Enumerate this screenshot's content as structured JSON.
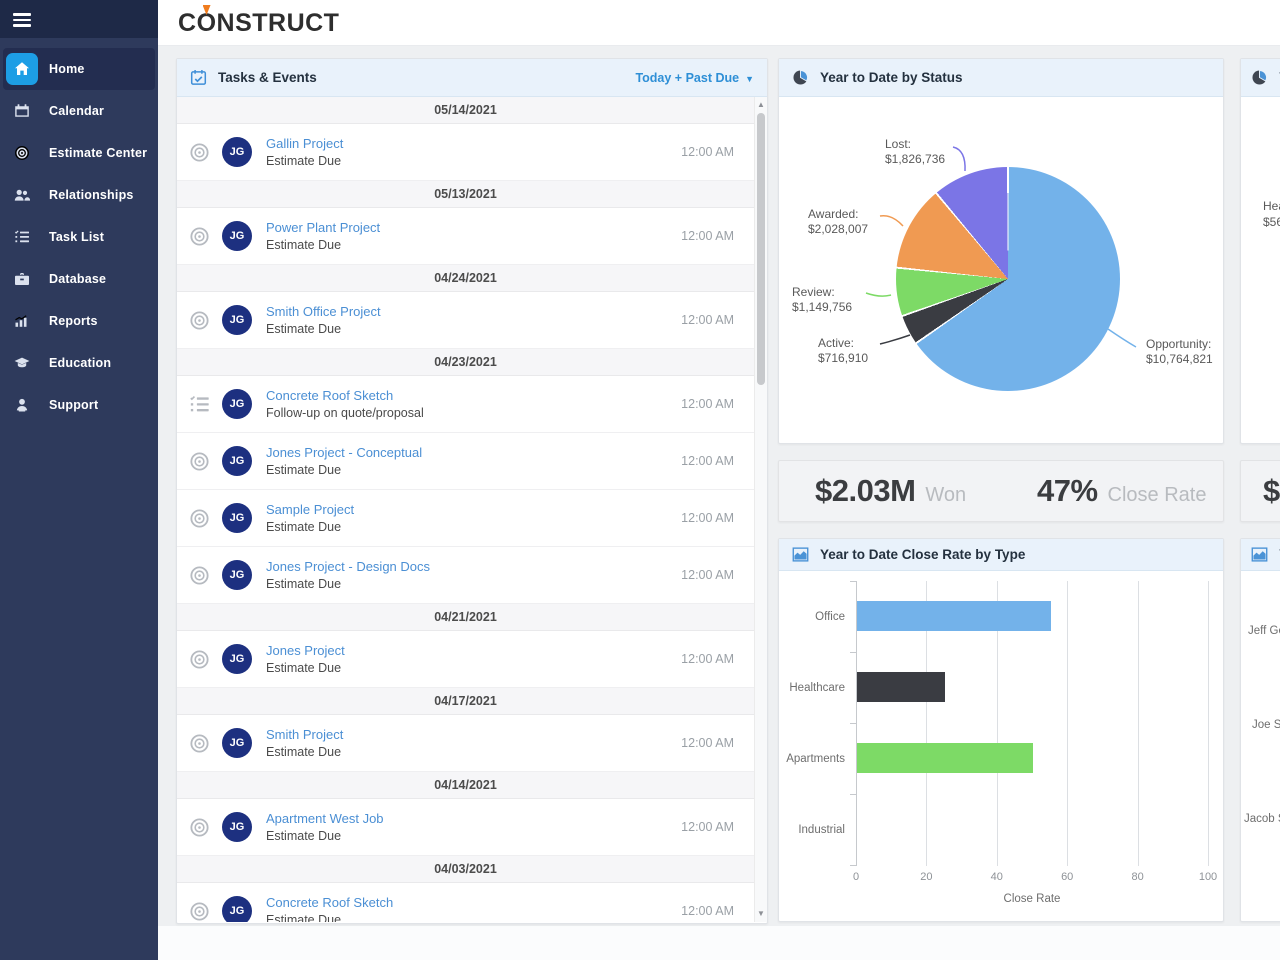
{
  "app": {
    "logo": {
      "prefix": "C",
      "o": "O",
      "suffix": "NSTRUCT"
    }
  },
  "sidebar": {
    "items": [
      {
        "label": "Home",
        "icon": "home",
        "active": true
      },
      {
        "label": "Calendar",
        "icon": "calendar",
        "active": false
      },
      {
        "label": "Estimate Center",
        "icon": "target",
        "active": false
      },
      {
        "label": "Relationships",
        "icon": "people",
        "active": false
      },
      {
        "label": "Task List",
        "icon": "tasklist",
        "active": false
      },
      {
        "label": "Database",
        "icon": "database",
        "active": false
      },
      {
        "label": "Reports",
        "icon": "reports",
        "active": false
      },
      {
        "label": "Education",
        "icon": "education",
        "active": false
      },
      {
        "label": "Support",
        "icon": "support",
        "active": false
      }
    ]
  },
  "tasks_panel": {
    "title": "Tasks & Events",
    "filter_label": "Today + Past Due",
    "entries": [
      {
        "type": "date",
        "label": "05/14/2021"
      },
      {
        "type": "task",
        "icon": "target",
        "avatar": "JG",
        "title": "Gallin Project",
        "subtitle": "Estimate Due",
        "time": "12:00 AM"
      },
      {
        "type": "date",
        "label": "05/13/2021"
      },
      {
        "type": "task",
        "icon": "target",
        "avatar": "JG",
        "title": "Power Plant Project",
        "subtitle": "Estimate Due",
        "time": "12:00 AM"
      },
      {
        "type": "date",
        "label": "04/24/2021"
      },
      {
        "type": "task",
        "icon": "target",
        "avatar": "JG",
        "title": "Smith Office Project",
        "subtitle": "Estimate Due",
        "time": "12:00 AM"
      },
      {
        "type": "date",
        "label": "04/23/2021"
      },
      {
        "type": "task",
        "icon": "checklist",
        "avatar": "JG",
        "title": "Concrete Roof Sketch",
        "subtitle": "Follow-up on quote/proposal",
        "time": "12:00 AM"
      },
      {
        "type": "task",
        "icon": "target",
        "avatar": "JG",
        "title": "Jones Project - Conceptual",
        "subtitle": "Estimate Due",
        "time": "12:00 AM"
      },
      {
        "type": "task",
        "icon": "target",
        "avatar": "JG",
        "title": "Sample Project",
        "subtitle": "Estimate Due",
        "time": "12:00 AM"
      },
      {
        "type": "task",
        "icon": "target",
        "avatar": "JG",
        "title": "Jones Project - Design Docs",
        "subtitle": "Estimate Due",
        "time": "12:00 AM"
      },
      {
        "type": "date",
        "label": "04/21/2021"
      },
      {
        "type": "task",
        "icon": "target",
        "avatar": "JG",
        "title": "Jones Project",
        "subtitle": "Estimate Due",
        "time": "12:00 AM"
      },
      {
        "type": "date",
        "label": "04/17/2021"
      },
      {
        "type": "task",
        "icon": "target",
        "avatar": "JG",
        "title": "Smith Project",
        "subtitle": "Estimate Due",
        "time": "12:00 AM"
      },
      {
        "type": "date",
        "label": "04/14/2021"
      },
      {
        "type": "task",
        "icon": "target",
        "avatar": "JG",
        "title": "Apartment West Job",
        "subtitle": "Estimate Due",
        "time": "12:00 AM"
      },
      {
        "type": "date",
        "label": "04/03/2021"
      },
      {
        "type": "task",
        "icon": "target",
        "avatar": "JG",
        "title": "Concrete Roof Sketch",
        "subtitle": "Estimate Due",
        "time": "12:00 AM"
      }
    ]
  },
  "stats": [
    {
      "value": "$2.03M",
      "label": "Won"
    },
    {
      "value": "47%",
      "label": "Close Rate"
    },
    {
      "value": "$",
      "label": ""
    }
  ],
  "right_panels": {
    "top_title_fragment": "Y",
    "top_labels": [
      "Hea",
      "$56"
    ],
    "bottom_title_fragment": "Y",
    "bottom_categories": [
      "Jeff Ge",
      "Joe S",
      "Jacob Si"
    ]
  },
  "chart_data": [
    {
      "type": "pie",
      "title": "Year to Date by Status",
      "legend_position": "callout-labels",
      "slices": [
        {
          "label": "Opportunity",
          "value": 10764821,
          "display": "$10,764,821",
          "color": "#73b2ea"
        },
        {
          "label": "Active",
          "value": 716910,
          "display": "$716,910",
          "color": "#3a3c42"
        },
        {
          "label": "Review",
          "value": 1149756,
          "display": "$1,149,756",
          "color": "#7dda66"
        },
        {
          "label": "Awarded",
          "value": 2028007,
          "display": "$2,028,007",
          "color": "#f09a52"
        },
        {
          "label": "Lost",
          "value": 1826736,
          "display": "$1,826,736",
          "color": "#7b75e6"
        }
      ]
    },
    {
      "type": "bar",
      "orientation": "horizontal",
      "title": "Year to Date Close Rate by Type",
      "categories": [
        "Office",
        "Healthcare",
        "Apartments",
        "Industrial"
      ],
      "values": [
        55,
        25,
        50,
        0
      ],
      "colors": [
        "#73b2ea",
        "#3a3c42",
        "#7dda66",
        "#73b2ea"
      ],
      "xlabel": "Close Rate",
      "xlim": [
        0,
        100
      ],
      "ticks": [
        0,
        20,
        40,
        60,
        80,
        100
      ],
      "grid": true
    }
  ]
}
